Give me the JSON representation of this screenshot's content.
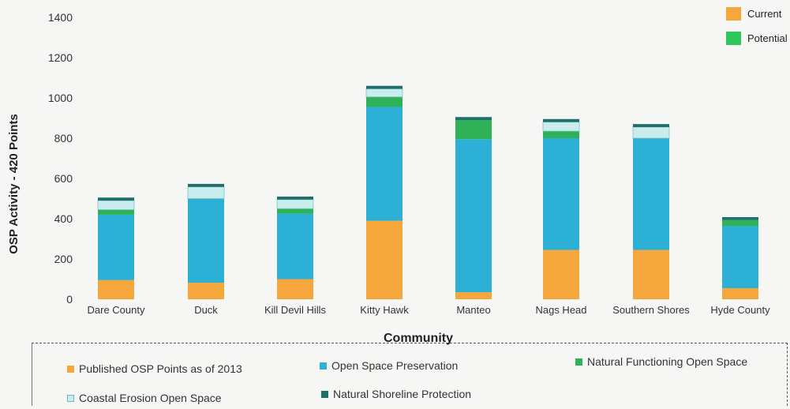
{
  "chart_data": {
    "type": "bar",
    "stacked": true,
    "categories": [
      "Dare County",
      "Duck",
      "Kill Devil Hills",
      "Kitty Hawk",
      "Manteo",
      "Nags Head",
      "Southern Shores",
      "Hyde County"
    ],
    "series": [
      {
        "name": "Published OSP Points as of 2013",
        "color": "#f5a73c",
        "values": [
          95,
          82,
          100,
          390,
          35,
          245,
          245,
          55
        ]
      },
      {
        "name": "Open Space Preservation",
        "color": "#2cb0d6",
        "values": [
          325,
          418,
          325,
          565,
          760,
          555,
          555,
          308
        ]
      },
      {
        "name": "Natural Functioning Open Space",
        "color": "#2fb157",
        "values": [
          25,
          0,
          25,
          50,
          95,
          35,
          0,
          30
        ]
      },
      {
        "name": "Coastal Erosion Open Space",
        "color": "#c9ecec",
        "values": [
          45,
          58,
          45,
          40,
          0,
          45,
          55,
          0
        ]
      },
      {
        "name": "Natural Shoreline Protection",
        "color": "#1f6f6a",
        "values": [
          15,
          15,
          15,
          15,
          15,
          15,
          15,
          15
        ]
      }
    ],
    "xlabel": "Community",
    "ylabel": "OSP Activity - 420 Points",
    "ylim": [
      0,
      1400
    ],
    "yticks": [
      0,
      200,
      400,
      600,
      800,
      1000,
      1200,
      1400
    ],
    "grid": false,
    "legend": "bottom"
  },
  "top_legend": [
    {
      "label": "Current",
      "color": "#f5a73c"
    },
    {
      "label": "Potential",
      "color": "#2fc65a"
    }
  ]
}
